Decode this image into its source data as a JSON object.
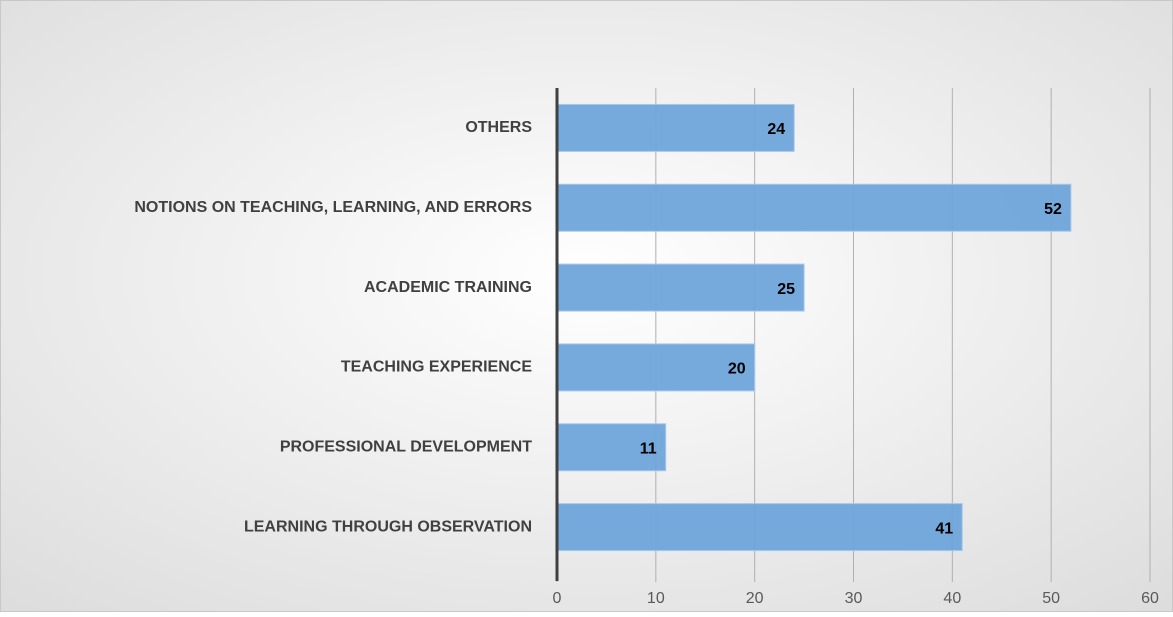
{
  "chart_data": {
    "type": "barh",
    "categories": [
      "OTHERS",
      "NOTIONS ON TEACHING, LEARNING, AND ERRORS",
      "ACADEMIC TRAINING",
      "TEACHING EXPERIENCE",
      "PROFESSIONAL DEVELOPMENT",
      "LEARNING THROUGH OBSERVATION"
    ],
    "values": [
      24,
      52,
      25,
      20,
      11,
      41
    ],
    "color": "#6fa5da",
    "xlim": [
      0,
      60
    ],
    "xticks": [
      0,
      10,
      20,
      30,
      40,
      50,
      60
    ],
    "grid": true
  }
}
